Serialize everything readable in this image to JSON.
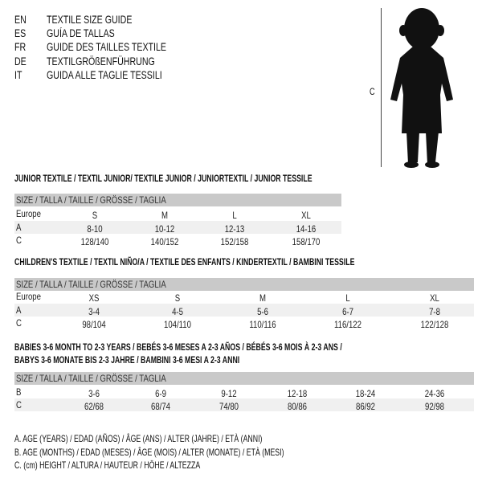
{
  "languages": [
    {
      "code": "EN",
      "title": "TEXTILE SIZE GUIDE"
    },
    {
      "code": "ES",
      "title": "GUÍA DE TALLAS"
    },
    {
      "code": "FR",
      "title": "GUIDE DES TAILLES TEXTILE"
    },
    {
      "code": "DE",
      "title": "TEXTILGRÖßENFÜHRUNG"
    },
    {
      "code": "IT",
      "title": "GUIDA ALLE TAGLIE TESSILI"
    }
  ],
  "figure": {
    "label": "C",
    "icon": "child-silhouette-icon"
  },
  "tables": [
    {
      "title": [
        "JUNIOR TEXTILE / TEXTIL JUNIOR/ TEXTILE JUNIOR / JUNIORTEXTIL / JUNIOR TESSILE"
      ],
      "header": "SIZE / TALLA / TAILLE / GRÖSSE / TAGLIA",
      "rows": [
        {
          "label": "Europe",
          "values": [
            "S",
            "M",
            "L",
            "XL"
          ]
        },
        {
          "label": "A",
          "values": [
            "8-10",
            "10-12",
            "12-13",
            "14-16"
          ]
        },
        {
          "label": "C",
          "values": [
            "128/140",
            "140/152",
            "152/158",
            "158/170"
          ]
        }
      ]
    },
    {
      "title": [
        "CHILDREN'S TEXTILE / TEXTIL NIÑO/A / TEXTILE DES ENFANTS / KINDERTEXTIL / BAMBINI TESSILE"
      ],
      "header": "SIZE / TALLA / TAILLE / GRÖSSE / TAGLIA",
      "rows": [
        {
          "label": "Europe",
          "values": [
            "XS",
            "S",
            "M",
            "L",
            "XL"
          ]
        },
        {
          "label": "A",
          "values": [
            "3-4",
            "4-5",
            "5-6",
            "6-7",
            "7-8"
          ]
        },
        {
          "label": "C",
          "values": [
            "98/104",
            "104/110",
            "110/116",
            "116/122",
            "122/128"
          ]
        }
      ]
    },
    {
      "title": [
        "BABIES 3-6 MONTH TO 2-3 YEARS / BEBÉS 3-6 MESES A 2-3 AÑOS / BÉBÉS 3-6 MOIS À 2-3 ANS /",
        "BABYS 3-6 MONATE BIS 2-3 JAHRE / BAMBINI 3-6 MESI A 2-3 ANNI"
      ],
      "header": "SIZE / TALLA / TAILLE / GRÖSSE / TAGLIA",
      "rows": [
        {
          "label": "B",
          "values": [
            "3-6",
            "6-9",
            "9-12",
            "12-18",
            "18-24",
            "24-36"
          ]
        },
        {
          "label": "C",
          "values": [
            "62/68",
            "68/74",
            "74/80",
            "80/86",
            "86/92",
            "92/98"
          ]
        }
      ]
    }
  ],
  "legend": [
    "A. AGE (YEARS) / EDAD (AÑOS) / ÂGE (ANS) / ALTER (JAHRE) / ETÀ (ANNI)",
    "B. AGE (MONTHS) / EDAD (MESES) / ÂGE (MOIS) / ALTER (MONATE) / ETÀ (MESI)",
    "C. (cm) HEIGHT / ALTURA / HAUTEUR / HÖHE / ALTEZZA"
  ]
}
